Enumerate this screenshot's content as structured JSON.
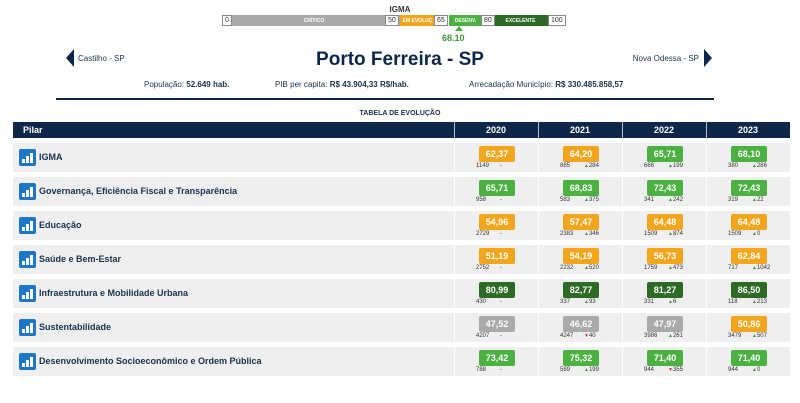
{
  "scale": {
    "title": "IGMA",
    "segments": [
      {
        "label": "CRÍTICO",
        "color": "#a9aaa9"
      },
      {
        "label": "EM EVOLUÇ",
        "color": "#f3a51b"
      },
      {
        "label": "DESENV.",
        "color": "#4bb141"
      },
      {
        "label": "EXCELENTE",
        "color": "#2c6a26"
      }
    ],
    "ticks": [
      "0",
      "50",
      "65",
      "80",
      "100"
    ],
    "marker_value": "68.10"
  },
  "header": {
    "title": "Porto Ferreira - SP",
    "prev_city": "Castilho - SP",
    "next_city": "Nova Odessa - SP",
    "populacao_label": "População:",
    "populacao_value": "52.649 hab.",
    "pib_label": "PIB per capita:",
    "pib_value": "R$ 43.904,33 R$/hab.",
    "arrecadacao_label": "Arrecadação Município:",
    "arrecadacao_value": "R$ 330.485.858,57"
  },
  "table": {
    "caption": "TABELA DE EVOLUÇÃO",
    "pilar_header": "Pilar",
    "years": [
      "2020",
      "2021",
      "2022",
      "2023"
    ],
    "colors": {
      "yellow": "#f3a51b",
      "green": "#4bb141",
      "dark": "#2c6a26",
      "gray": "#a9aaa9"
    },
    "rows": [
      {
        "label": "IGMA",
        "cells": [
          {
            "score": "62,37",
            "color": "yellow",
            "rank": "1149",
            "dir": "none",
            "delta": "-"
          },
          {
            "score": "64,20",
            "color": "yellow",
            "rank": "865",
            "dir": "up",
            "delta": "284"
          },
          {
            "score": "65,71",
            "color": "green",
            "rank": "666",
            "dir": "up",
            "delta": "199"
          },
          {
            "score": "68,10",
            "color": "green",
            "rank": "380",
            "dir": "up",
            "delta": "286"
          }
        ]
      },
      {
        "label": "Governança, Eficiência Fiscal e Transparência",
        "cells": [
          {
            "score": "65,71",
            "color": "green",
            "rank": "958",
            "dir": "none",
            "delta": "-"
          },
          {
            "score": "68,83",
            "color": "green",
            "rank": "583",
            "dir": "up",
            "delta": "375"
          },
          {
            "score": "72,43",
            "color": "green",
            "rank": "341",
            "dir": "up",
            "delta": "242"
          },
          {
            "score": "72,43",
            "color": "green",
            "rank": "319",
            "dir": "up",
            "delta": "22"
          }
        ]
      },
      {
        "label": "Educação",
        "cells": [
          {
            "score": "54,96",
            "color": "yellow",
            "rank": "2729",
            "dir": "none",
            "delta": "-"
          },
          {
            "score": "57,47",
            "color": "yellow",
            "rank": "2383",
            "dir": "up",
            "delta": "346"
          },
          {
            "score": "64,48",
            "color": "yellow",
            "rank": "1509",
            "dir": "up",
            "delta": "874"
          },
          {
            "score": "64,48",
            "color": "yellow",
            "rank": "1509",
            "dir": "up",
            "delta": "0"
          }
        ]
      },
      {
        "label": "Saúde e Bem-Estar",
        "cells": [
          {
            "score": "51,19",
            "color": "yellow",
            "rank": "2752",
            "dir": "none",
            "delta": "-"
          },
          {
            "score": "54,19",
            "color": "yellow",
            "rank": "2232",
            "dir": "up",
            "delta": "520"
          },
          {
            "score": "56,73",
            "color": "yellow",
            "rank": "1759",
            "dir": "up",
            "delta": "473"
          },
          {
            "score": "62,84",
            "color": "yellow",
            "rank": "717",
            "dir": "up",
            "delta": "1042"
          }
        ]
      },
      {
        "label": "Infraestrutura e Mobilidade Urbana",
        "cells": [
          {
            "score": "80,99",
            "color": "dark",
            "rank": "430",
            "dir": "none",
            "delta": "-"
          },
          {
            "score": "82,77",
            "color": "dark",
            "rank": "337",
            "dir": "up",
            "delta": "93"
          },
          {
            "score": "81,27",
            "color": "dark",
            "rank": "331",
            "dir": "up",
            "delta": "6"
          },
          {
            "score": "86,50",
            "color": "dark",
            "rank": "118",
            "dir": "up",
            "delta": "213"
          }
        ]
      },
      {
        "label": "Sustentabilidade",
        "cells": [
          {
            "score": "47,52",
            "color": "gray",
            "rank": "4207",
            "dir": "none",
            "delta": "-"
          },
          {
            "score": "46,62",
            "color": "gray",
            "rank": "4247",
            "dir": "down",
            "delta": "40"
          },
          {
            "score": "47,97",
            "color": "gray",
            "rank": "3986",
            "dir": "up",
            "delta": "261"
          },
          {
            "score": "50,86",
            "color": "yellow",
            "rank": "3479",
            "dir": "up",
            "delta": "507"
          }
        ]
      },
      {
        "label": "Desenvolvimento Socioeconômico e Ordem Pública",
        "cells": [
          {
            "score": "73,42",
            "color": "green",
            "rank": "788",
            "dir": "none",
            "delta": "-"
          },
          {
            "score": "75,32",
            "color": "green",
            "rank": "589",
            "dir": "up",
            "delta": "199"
          },
          {
            "score": "71,40",
            "color": "green",
            "rank": "944",
            "dir": "down",
            "delta": "355"
          },
          {
            "score": "71,40",
            "color": "green",
            "rank": "944",
            "dir": "up",
            "delta": "0"
          }
        ]
      }
    ]
  }
}
